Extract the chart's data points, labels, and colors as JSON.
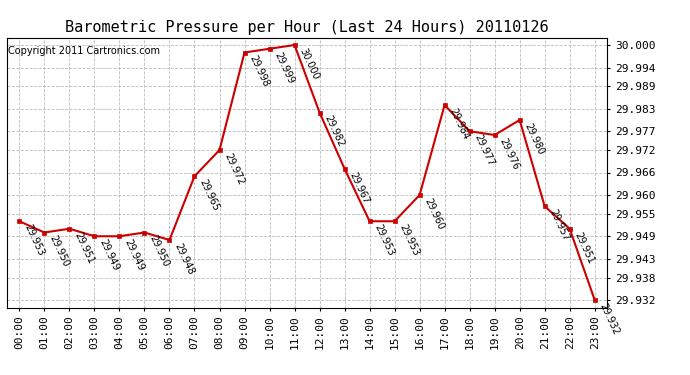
{
  "title": "Barometric Pressure per Hour (Last 24 Hours) 20110126",
  "copyright": "Copyright 2011 Cartronics.com",
  "hours": [
    "00:00",
    "01:00",
    "02:00",
    "03:00",
    "04:00",
    "05:00",
    "06:00",
    "07:00",
    "08:00",
    "09:00",
    "10:00",
    "11:00",
    "12:00",
    "13:00",
    "14:00",
    "15:00",
    "16:00",
    "17:00",
    "18:00",
    "19:00",
    "20:00",
    "21:00",
    "22:00",
    "23:00"
  ],
  "values": [
    29.953,
    29.95,
    29.951,
    29.949,
    29.949,
    29.95,
    29.948,
    29.965,
    29.972,
    29.998,
    29.999,
    30.0,
    29.982,
    29.967,
    29.953,
    29.953,
    29.96,
    29.984,
    29.977,
    29.976,
    29.98,
    29.957,
    29.951,
    29.932
  ],
  "yticks": [
    29.932,
    29.938,
    29.943,
    29.949,
    29.955,
    29.96,
    29.966,
    29.972,
    29.977,
    29.983,
    29.989,
    29.994,
    30.0
  ],
  "ylim_min": 29.93,
  "ylim_max": 30.002,
  "line_color": "#cc0000",
  "marker_color": "#cc0000",
  "bg_color": "#ffffff",
  "grid_color": "#bbbbbb",
  "title_fontsize": 11,
  "label_fontsize": 7,
  "tick_fontsize": 8,
  "copyright_fontsize": 7
}
